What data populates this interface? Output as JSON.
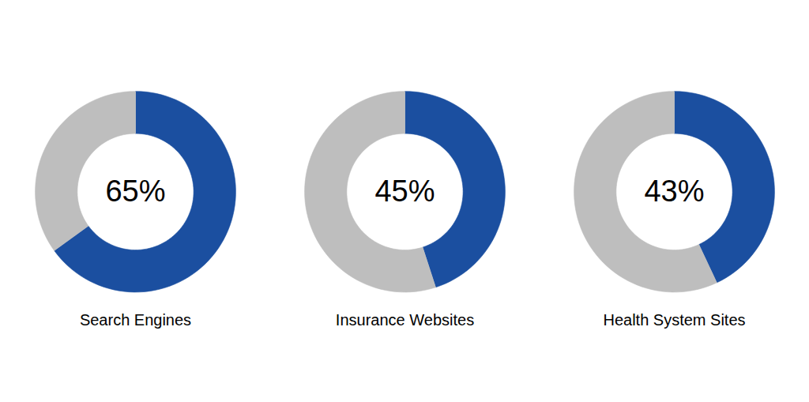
{
  "chart_data": [
    {
      "type": "donut",
      "title": "Search Engines",
      "values": [
        65,
        35
      ],
      "colors": [
        "#1B4FA0",
        "#BEBEBE"
      ],
      "annotation": "65%"
    },
    {
      "type": "donut",
      "title": "Insurance Websites",
      "values": [
        45,
        55
      ],
      "colors": [
        "#1B4FA0",
        "#BEBEBE"
      ],
      "annotation": "45%"
    },
    {
      "type": "donut",
      "title": "Health System Sites",
      "values": [
        43,
        57
      ],
      "colors": [
        "#1B4FA0",
        "#BEBEBE"
      ],
      "annotation": "43%"
    }
  ]
}
